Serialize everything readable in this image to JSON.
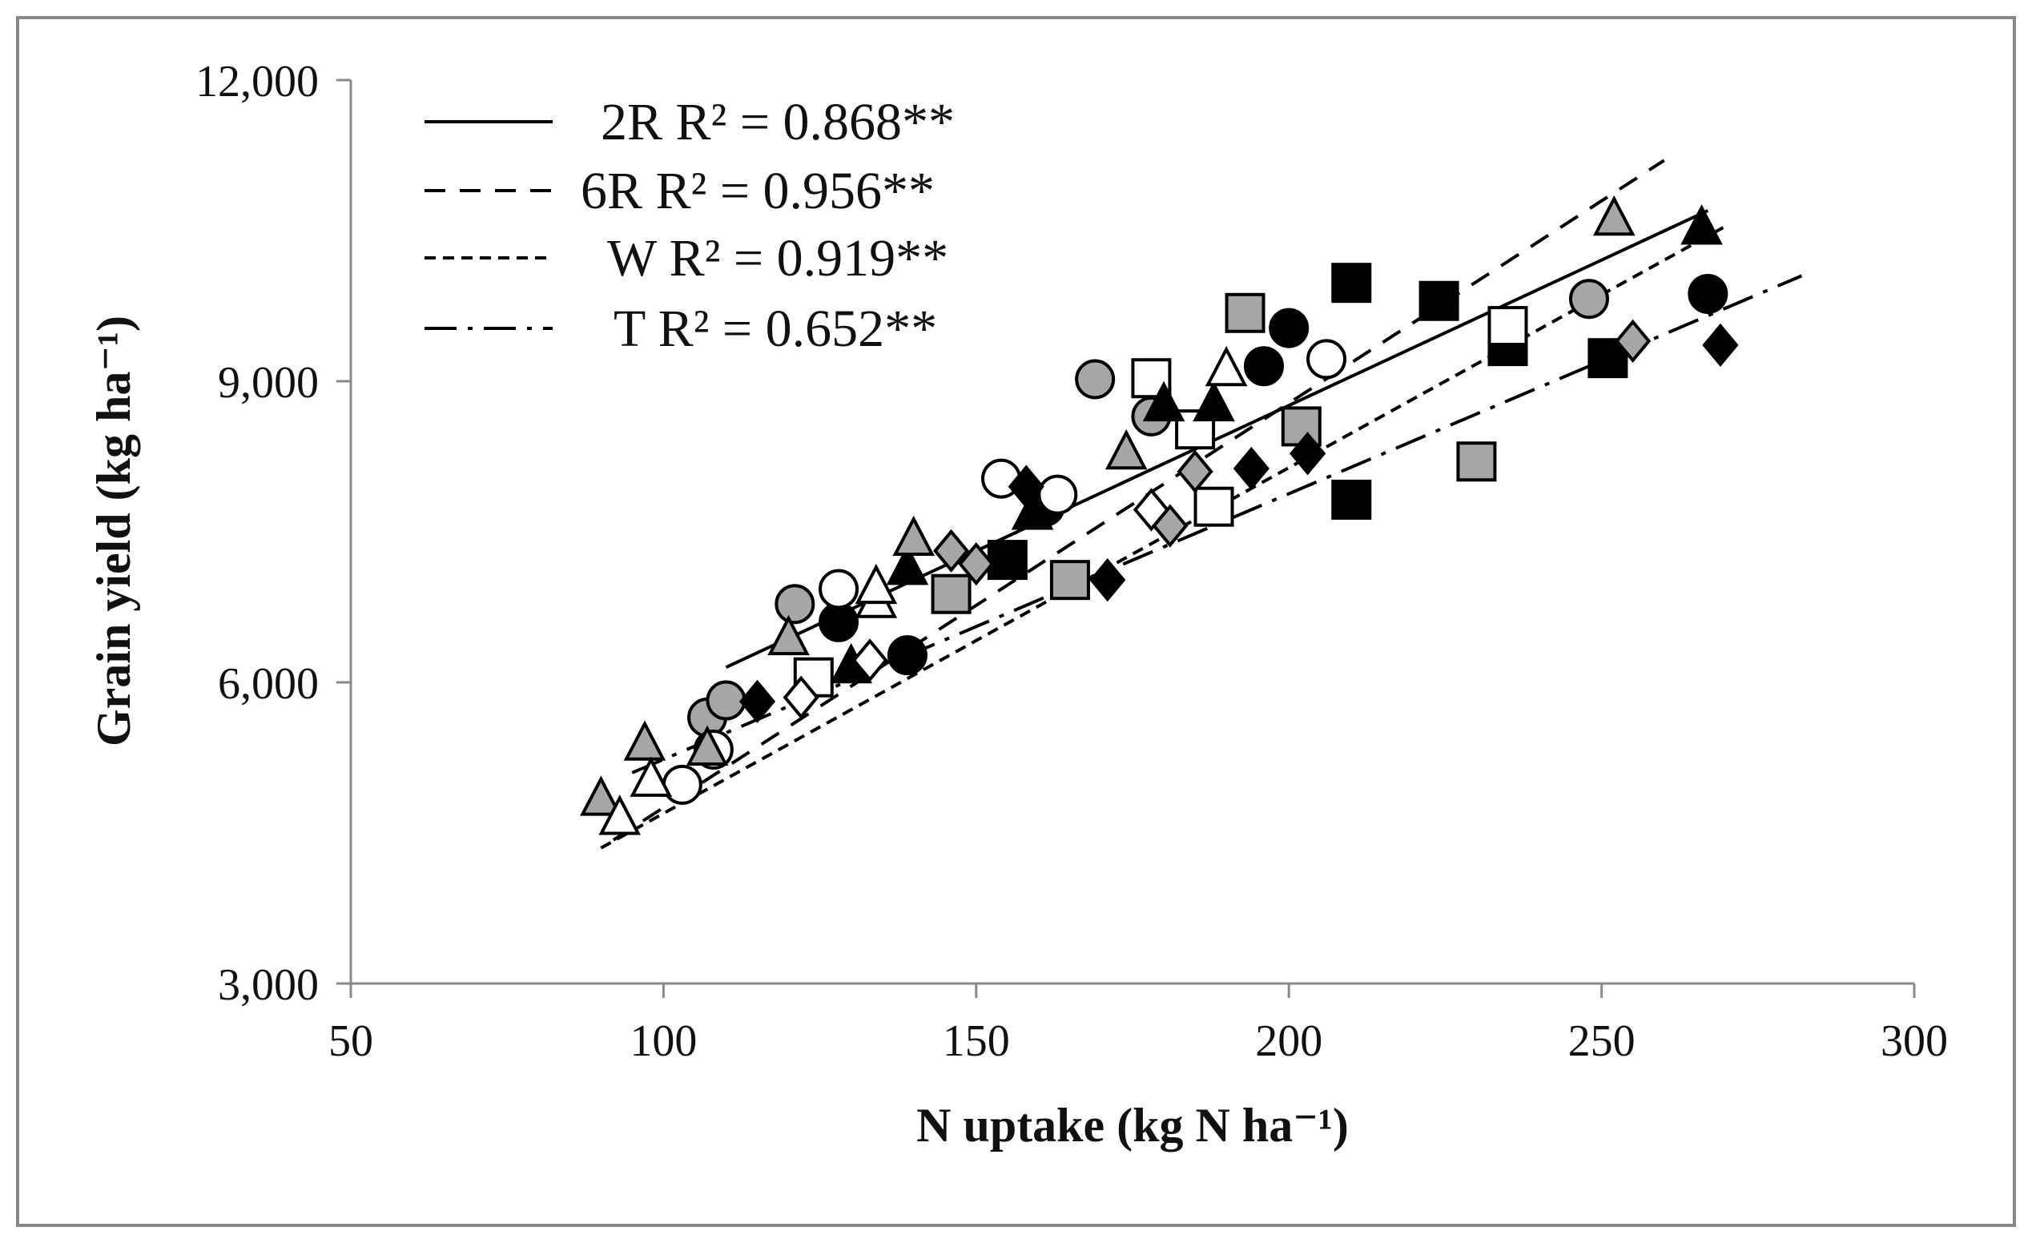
{
  "chart_data": {
    "type": "scatter",
    "title": "",
    "xlabel": "N uptake (kg N ha⁻¹)",
    "ylabel": "Grain yield (kg ha⁻¹)",
    "xlim": [
      50,
      300
    ],
    "ylim": [
      3000,
      12000
    ],
    "xticks": [
      50,
      100,
      150,
      200,
      250,
      300
    ],
    "xtick_labels": [
      "50",
      "100",
      "150",
      "200",
      "250",
      "300"
    ],
    "yticks": [
      3000,
      6000,
      9000,
      12000
    ],
    "ytick_labels": [
      "3,000",
      "6,000",
      "9,000",
      "12,000"
    ],
    "legend_position": "top-left",
    "colors": {
      "black": "#000000",
      "gray": "#a6a6a6",
      "white": "#ffffff"
    },
    "fits": [
      {
        "name": "2R",
        "label": "2R R² = 0.868**",
        "dash": "solid",
        "x": [
          110,
          267
        ],
        "y": [
          6150,
          10700
        ]
      },
      {
        "name": "6R",
        "label": "6R R² = 0.956**",
        "dash": "long-dash",
        "x": [
          92,
          260
        ],
        "y": [
          4430,
          11200
        ]
      },
      {
        "name": "W",
        "label": "W R² = 0.919**",
        "dash": "short-dash",
        "x": [
          90,
          270
        ],
        "y": [
          4350,
          10550
        ]
      },
      {
        "name": "T",
        "label": "T R² = 0.652**",
        "dash": "dash-dot",
        "x": [
          95,
          282
        ],
        "y": [
          5100,
          10050
        ]
      }
    ],
    "series": [
      {
        "name": "circle-black",
        "shape": "circle",
        "fill": "black",
        "points": [
          [
            128,
            6600
          ],
          [
            139,
            6270
          ],
          [
            161,
            7750
          ],
          [
            196,
            9150
          ],
          [
            200,
            9530
          ],
          [
            267,
            9870
          ]
        ]
      },
      {
        "name": "circle-gray",
        "shape": "circle",
        "fill": "gray",
        "points": [
          [
            107,
            5650
          ],
          [
            110,
            5820
          ],
          [
            121,
            6780
          ],
          [
            169,
            9020
          ],
          [
            178,
            8650
          ],
          [
            248,
            9820
          ]
        ]
      },
      {
        "name": "circle-white",
        "shape": "circle",
        "fill": "white",
        "points": [
          [
            103,
            4980
          ],
          [
            108,
            5330
          ],
          [
            128,
            6930
          ],
          [
            154,
            8030
          ],
          [
            163,
            7870
          ],
          [
            206,
            9220
          ]
        ]
      },
      {
        "name": "square-black",
        "shape": "square",
        "fill": "black",
        "points": [
          [
            155,
            7220
          ],
          [
            210,
            7820
          ],
          [
            210,
            9980
          ],
          [
            224,
            9800
          ],
          [
            235,
            9350
          ],
          [
            251,
            9230
          ]
        ]
      },
      {
        "name": "square-gray",
        "shape": "square",
        "fill": "gray",
        "points": [
          [
            146,
            6880
          ],
          [
            165,
            7020
          ],
          [
            193,
            9680
          ],
          [
            202,
            8550
          ],
          [
            230,
            8200
          ]
        ]
      },
      {
        "name": "square-white",
        "shape": "square",
        "fill": "white",
        "points": [
          [
            124,
            6050
          ],
          [
            178,
            9030
          ],
          [
            185,
            8520
          ],
          [
            188,
            7750
          ],
          [
            235,
            9550
          ]
        ]
      },
      {
        "name": "triangle-black",
        "shape": "triangle",
        "fill": "black",
        "points": [
          [
            130,
            6150
          ],
          [
            139,
            7130
          ],
          [
            159,
            7680
          ],
          [
            180,
            8760
          ],
          [
            188,
            8760
          ],
          [
            266,
            10520
          ]
        ]
      },
      {
        "name": "triangle-gray",
        "shape": "triangle",
        "fill": "gray",
        "points": [
          [
            90,
            4830
          ],
          [
            97,
            5380
          ],
          [
            107,
            5330
          ],
          [
            120,
            6430
          ],
          [
            140,
            7420
          ],
          [
            174,
            8280
          ],
          [
            252,
            10610
          ]
        ]
      },
      {
        "name": "triangle-white",
        "shape": "triangle",
        "fill": "white",
        "points": [
          [
            93,
            4640
          ],
          [
            98,
            5020
          ],
          [
            134,
            6800
          ],
          [
            134,
            6940
          ],
          [
            190,
            9110
          ]
        ]
      },
      {
        "name": "diamond-black",
        "shape": "diamond",
        "fill": "black",
        "points": [
          [
            115,
            5810
          ],
          [
            158,
            7950
          ],
          [
            171,
            7020
          ],
          [
            194,
            8130
          ],
          [
            203,
            8280
          ],
          [
            269,
            9360
          ]
        ]
      },
      {
        "name": "diamond-gray",
        "shape": "diamond",
        "fill": "gray",
        "points": [
          [
            146,
            7310
          ],
          [
            150,
            7180
          ],
          [
            181,
            7560
          ],
          [
            185,
            8100
          ],
          [
            255,
            9400
          ]
        ]
      },
      {
        "name": "diamond-white",
        "shape": "diamond",
        "fill": "white",
        "points": [
          [
            122,
            5850
          ],
          [
            133,
            6220
          ],
          [
            178,
            7720
          ]
        ]
      }
    ]
  }
}
